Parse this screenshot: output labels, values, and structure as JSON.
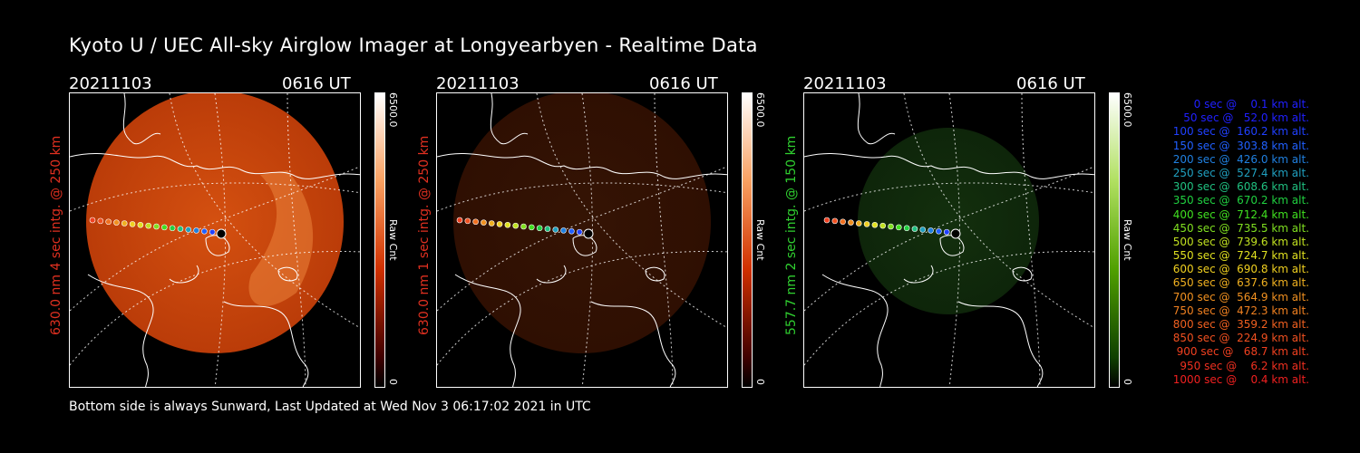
{
  "title": "Kyoto U / UEC All-sky Airglow Imager at Longyearbyen - Realtime Data",
  "panels": [
    {
      "date": "20211103",
      "time": "0616 UT",
      "ylabel": "630.0 nm 4 sec intg. @ 250 km",
      "label_color": "#e03020",
      "cbar_max": "6500.0",
      "cbar_min": "0",
      "cbar_unit": "Raw Cnt",
      "cbar_color": "#e04010",
      "brightness": 1.0
    },
    {
      "date": "20211103",
      "time": "0616 UT",
      "ylabel": "630.0 nm 1 sec intg. @ 250 km",
      "label_color": "#e03020",
      "cbar_max": "6500.0",
      "cbar_min": "0",
      "cbar_unit": "Raw Cnt",
      "cbar_color": "#e04010",
      "brightness": 0.25
    },
    {
      "date": "20211103",
      "time": "0616 UT",
      "ylabel": "557.7 nm 2 sec intg. @ 150 km",
      "label_color": "#30d030",
      "cbar_max": "6500.0",
      "cbar_min": "0",
      "cbar_unit": "Raw Cnt",
      "cbar_color": "#60c020",
      "brightness": 0.45
    }
  ],
  "footer": "Bottom side is always Sunward, Last Updated at Wed Nov  3 06:17:02 2021 in UTC",
  "legend": [
    {
      "text": "   0 sec @    0.1 km alt.",
      "color": "#2020ff"
    },
    {
      "text": "  50 sec @   52.0 km alt.",
      "color": "#2020ff"
    },
    {
      "text": " 100 sec @  160.2 km alt.",
      "color": "#2040ff"
    },
    {
      "text": " 150 sec @  303.8 km alt.",
      "color": "#2060ff"
    },
    {
      "text": " 200 sec @  426.0 km alt.",
      "color": "#2080e0"
    },
    {
      "text": " 250 sec @  527.4 km alt.",
      "color": "#20a0c0"
    },
    {
      "text": " 300 sec @  608.6 km alt.",
      "color": "#20c080"
    },
    {
      "text": " 350 sec @  670.2 km alt.",
      "color": "#20d040"
    },
    {
      "text": " 400 sec @  712.4 km alt.",
      "color": "#40e020"
    },
    {
      "text": " 450 sec @  735.5 km alt.",
      "color": "#80e020"
    },
    {
      "text": " 500 sec @  739.6 km alt.",
      "color": "#c0e020"
    },
    {
      "text": " 550 sec @  724.7 km alt.",
      "color": "#e0e020"
    },
    {
      "text": " 600 sec @  690.8 km alt.",
      "color": "#f0d020"
    },
    {
      "text": " 650 sec @  637.6 km alt.",
      "color": "#f0b020"
    },
    {
      "text": " 700 sec @  564.9 km alt.",
      "color": "#f09020"
    },
    {
      "text": " 750 sec @  472.3 km alt.",
      "color": "#f08020"
    },
    {
      "text": " 800 sec @  359.2 km alt.",
      "color": "#f06020"
    },
    {
      "text": " 850 sec @  224.9 km alt.",
      "color": "#f05020"
    },
    {
      "text": " 900 sec @   68.7 km alt.",
      "color": "#f04020"
    },
    {
      "text": " 950 sec @    6.2 km alt.",
      "color": "#f03020"
    },
    {
      "text": "1000 sec @    0.4 km alt.",
      "color": "#f02020"
    }
  ]
}
